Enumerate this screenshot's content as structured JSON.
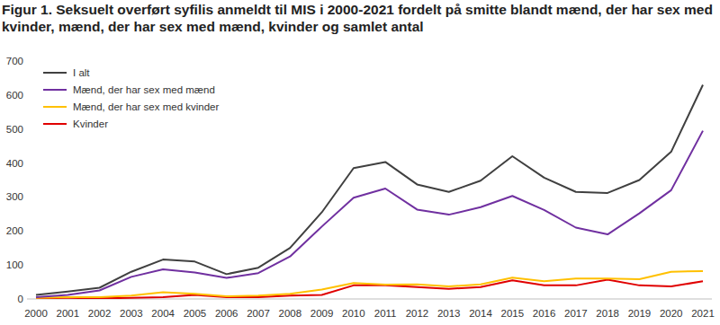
{
  "chart_data": {
    "type": "line",
    "title": "Figur 1. Seksuelt overført syfilis anmeldt til MIS i 2000-2021 fordelt på smitte blandt mænd, der har sex med kvinder, mænd, der har sex med mænd, kvinder og samlet antal",
    "categories": [
      "2000",
      "2001",
      "2002",
      "2003",
      "2004",
      "2005",
      "2006",
      "2007",
      "2008",
      "2009",
      "2010",
      "2011",
      "2012",
      "2013",
      "2014",
      "2015",
      "2016",
      "2017",
      "2018",
      "2019",
      "2020",
      "2021"
    ],
    "series": [
      {
        "name": "I alt",
        "color": "#404040",
        "values": [
          12,
          22,
          33,
          80,
          116,
          110,
          73,
          92,
          150,
          255,
          385,
          403,
          337,
          315,
          348,
          420,
          357,
          315,
          312,
          350,
          433,
          630
        ]
      },
      {
        "name": "Mænd, der har sex med mænd",
        "color": "#7030a0",
        "values": [
          5,
          12,
          25,
          65,
          87,
          78,
          62,
          76,
          125,
          213,
          298,
          325,
          263,
          248,
          270,
          303,
          262,
          210,
          190,
          252,
          320,
          495
        ]
      },
      {
        "name": "Mænd, der har sex med kvinder",
        "color": "#ffc000",
        "values": [
          3,
          5,
          5,
          10,
          20,
          15,
          8,
          10,
          15,
          28,
          47,
          42,
          43,
          37,
          43,
          63,
          52,
          60,
          60,
          58,
          80,
          82
        ]
      },
      {
        "name": "Kvinder",
        "color": "#e00000",
        "values": [
          2,
          3,
          2,
          3,
          5,
          12,
          5,
          5,
          10,
          12,
          40,
          40,
          35,
          30,
          35,
          55,
          40,
          40,
          57,
          40,
          37,
          52
        ]
      }
    ],
    "ylim": [
      0,
      700
    ],
    "yticks": [
      0,
      100,
      200,
      300,
      400,
      500,
      600,
      700
    ],
    "grid": false,
    "legend": "upper left"
  }
}
